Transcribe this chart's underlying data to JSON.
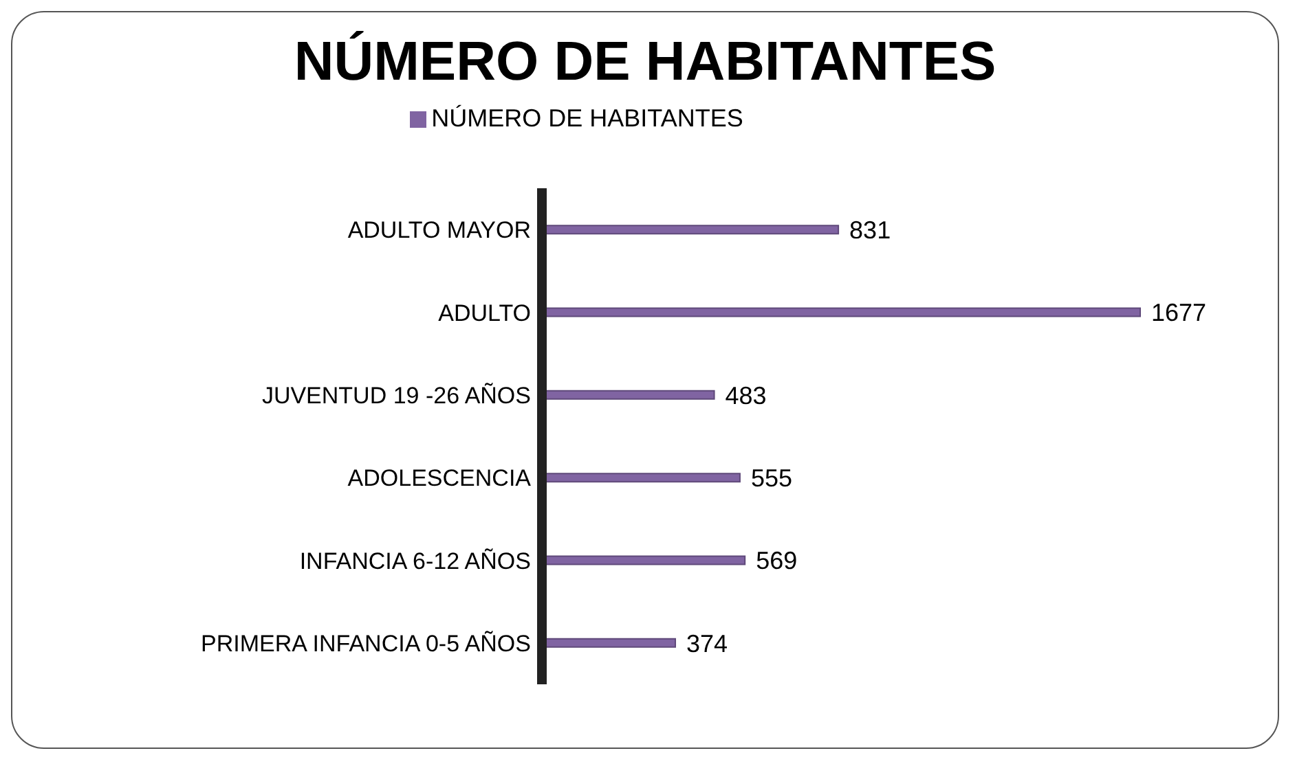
{
  "chart_data": {
    "type": "bar",
    "orientation": "horizontal",
    "title": "NÚMERO DE HABITANTES",
    "categories": [
      "ADULTO MAYOR",
      "ADULTO",
      "JUVENTUD 19 -26 AÑOS",
      "ADOLESCENCIA",
      "INFANCIA 6-12 AÑOS",
      "PRIMERA INFANCIA 0-5 AÑOS"
    ],
    "series": [
      {
        "name": "NÚMERO DE HABITANTES",
        "color": "#8064a2",
        "values": [
          831,
          1677,
          483,
          555,
          569,
          374
        ]
      }
    ],
    "data_labels": true,
    "legend": "top",
    "grid": false
  }
}
